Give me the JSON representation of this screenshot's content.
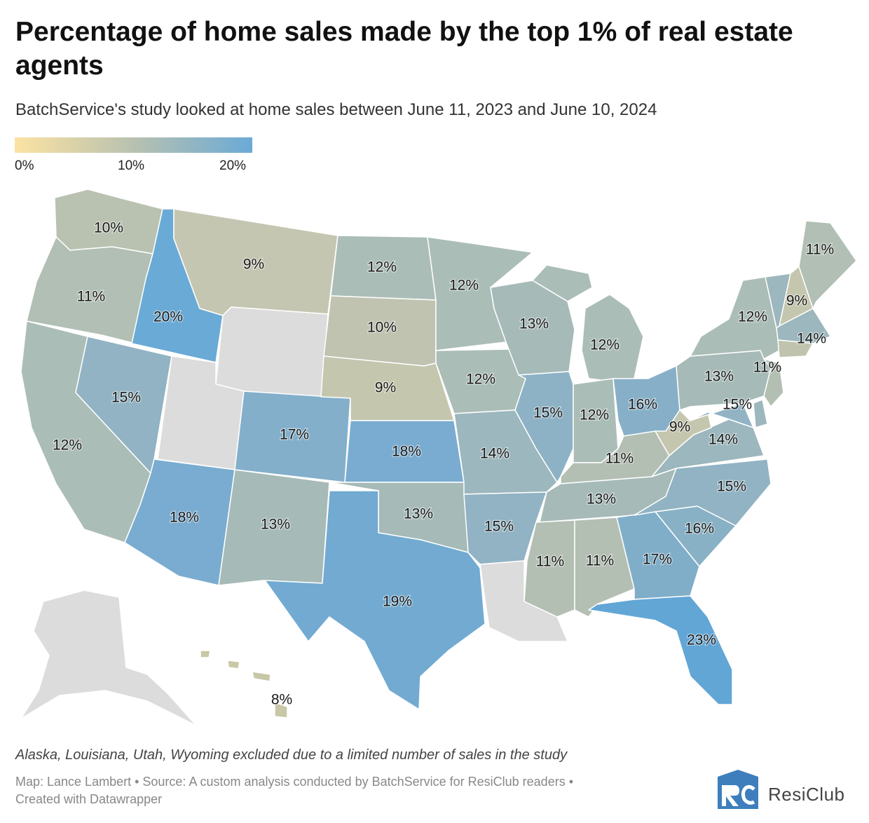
{
  "title": "Percentage of home sales made by the top 1% of real estate agents",
  "subtitle": "BatchService's study looked at home sales between June 11, 2023 and June 10, 2024",
  "legend": {
    "labels": [
      "0%",
      "10%",
      "20%"
    ],
    "min_value": 0,
    "max_value": 20,
    "colors": [
      "#fce3a2",
      "#b8c1b0",
      "#6aaad6"
    ]
  },
  "states": [
    {
      "name": "Washington",
      "value": 10,
      "label": "10%",
      "color": "#b9c1b1"
    },
    {
      "name": "Oregon",
      "value": 11,
      "label": "11%",
      "color": "#b2bfb4"
    },
    {
      "name": "California",
      "value": 12,
      "label": "12%",
      "color": "#abbdb7"
    },
    {
      "name": "Nevada",
      "value": 15,
      "label": "15%",
      "color": "#91b3c4"
    },
    {
      "name": "Idaho",
      "value": 20,
      "label": "20%",
      "color": "#6aaad6"
    },
    {
      "name": "Montana",
      "value": 9,
      "label": "9%",
      "color": "#c5c6b1"
    },
    {
      "name": "Arizona",
      "value": 18,
      "label": "18%",
      "color": "#79acd0"
    },
    {
      "name": "Colorado",
      "value": 17,
      "label": "17%",
      "color": "#83afcb"
    },
    {
      "name": "New Mexico",
      "value": 13,
      "label": "13%",
      "color": "#a6bab8"
    },
    {
      "name": "North Dakota",
      "value": 12,
      "label": "12%",
      "color": "#abbdb7"
    },
    {
      "name": "South Dakota",
      "value": 10,
      "label": "10%",
      "color": "#bfc3b0"
    },
    {
      "name": "Nebraska",
      "value": 9,
      "label": "9%",
      "color": "#c5c6ae"
    },
    {
      "name": "Kansas",
      "value": 18,
      "label": "18%",
      "color": "#79acd0"
    },
    {
      "name": "Oklahoma",
      "value": 13,
      "label": "13%",
      "color": "#a6bab8"
    },
    {
      "name": "Texas",
      "value": 19,
      "label": "19%",
      "color": "#72aad1"
    },
    {
      "name": "Minnesota",
      "value": 12,
      "label": "12%",
      "color": "#abbdb7"
    },
    {
      "name": "Iowa",
      "value": 12,
      "label": "12%",
      "color": "#abbdb7"
    },
    {
      "name": "Missouri",
      "value": 14,
      "label": "14%",
      "color": "#9cb7bd"
    },
    {
      "name": "Arkansas",
      "value": 15,
      "label": "15%",
      "color": "#91b3c4"
    },
    {
      "name": "Wisconsin",
      "value": 13,
      "label": "13%",
      "color": "#a6bab8"
    },
    {
      "name": "Illinois",
      "value": 15,
      "label": "15%",
      "color": "#8db2c5"
    },
    {
      "name": "Michigan",
      "value": 12,
      "label": "12%",
      "color": "#abbdb7"
    },
    {
      "name": "Indiana",
      "value": 12,
      "label": "12%",
      "color": "#abbdb7"
    },
    {
      "name": "Ohio",
      "value": 16,
      "label": "16%",
      "color": "#87b0c8"
    },
    {
      "name": "Kentucky",
      "value": 11,
      "label": "11%",
      "color": "#b4bfb3"
    },
    {
      "name": "Tennessee",
      "value": 13,
      "label": "13%",
      "color": "#a6bab8"
    },
    {
      "name": "Mississippi",
      "value": 11,
      "label": "11%",
      "color": "#b4bfb3"
    },
    {
      "name": "Alabama",
      "value": 11,
      "label": "11%",
      "color": "#b4bfb3"
    },
    {
      "name": "Georgia",
      "value": 17,
      "label": "17%",
      "color": "#80aec9"
    },
    {
      "name": "Florida",
      "value": 23,
      "label": "23%",
      "color": "#62a6d6"
    },
    {
      "name": "South Carolina",
      "value": 16,
      "label": "16%",
      "color": "#89b1c6"
    },
    {
      "name": "North Carolina",
      "value": 15,
      "label": "15%",
      "color": "#91b3c4"
    },
    {
      "name": "Virginia",
      "value": 14,
      "label": "14%",
      "color": "#9cb7bd"
    },
    {
      "name": "West Virginia",
      "value": 9,
      "label": "9%",
      "color": "#c5c6ae"
    },
    {
      "name": "Pennsylvania",
      "value": 13,
      "label": "13%",
      "color": "#a6bab8"
    },
    {
      "name": "New York",
      "value": 12,
      "label": "12%",
      "color": "#abbdb7"
    },
    {
      "name": "New Jersey",
      "value": 11,
      "label": "11%",
      "color": "#b4bfb3"
    },
    {
      "name": "Maryland",
      "value": 15,
      "label": "15%",
      "color": "#91b3c4"
    },
    {
      "name": "Vermont",
      "value": 14,
      "label": "",
      "color": "#9cb7bd"
    },
    {
      "name": "New Hampshire",
      "value": 9,
      "label": "9%",
      "color": "#c5c6ae"
    },
    {
      "name": "Maine",
      "value": 11,
      "label": "11%",
      "color": "#b2bfb4"
    },
    {
      "name": "Massachusetts",
      "value": 14,
      "label": "14%",
      "color": "#9cb7bd"
    },
    {
      "name": "Connecticut",
      "value": 11,
      "label": "",
      "color": "#c0c3ad"
    },
    {
      "name": "Delaware",
      "value": 14,
      "label": "",
      "color": "#9cb7bd"
    },
    {
      "name": "Hawaii",
      "value": 8,
      "label": "8%",
      "color": "#c8c7a6"
    },
    {
      "name": "Utah",
      "value": null,
      "label": "",
      "color": "#dcdcdc"
    },
    {
      "name": "Wyoming",
      "value": null,
      "label": "",
      "color": "#dcdcdc"
    },
    {
      "name": "Louisiana",
      "value": null,
      "label": "",
      "color": "#dcdcdc"
    },
    {
      "name": "Alaska",
      "value": null,
      "label": "",
      "color": "#dcdcdc"
    }
  ],
  "note": "Alaska, Louisiana, Utah, Wyoming excluded due to a limited number of sales in the study",
  "source": {
    "line1": "Map: Lance Lambert • Source: A custom analysis conducted by BatchService for ResiClub readers •",
    "line2": "Created with Datawrapper"
  },
  "logo": {
    "text": "ResiClub",
    "mark_color": "#3e7ebd"
  }
}
